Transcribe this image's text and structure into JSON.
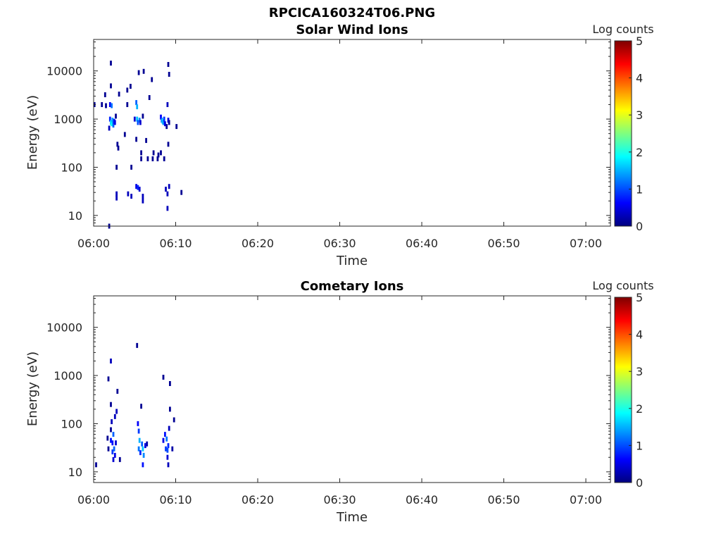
{
  "figure": {
    "title": "RPCICA160324T06.PNG"
  },
  "colormap": {
    "name": "jet",
    "stops": [
      "#00007f",
      "#0000ff",
      "#007fff",
      "#00ffff",
      "#7fff7f",
      "#ffff00",
      "#ff7f00",
      "#ff0000",
      "#7f0000"
    ]
  },
  "chart_data": [
    {
      "type": "heatmap",
      "title": "Solar Wind Ions",
      "xlabel": "Time",
      "ylabel": "Energy (eV)",
      "xlim": [
        "06:00",
        "07:03"
      ],
      "ylim": [
        6,
        45000
      ],
      "yscale": "log",
      "xticks": [
        "06:00",
        "06:10",
        "06:20",
        "06:30",
        "06:40",
        "06:50",
        "07:00"
      ],
      "yticks": [
        10,
        100,
        1000,
        10000
      ],
      "ytick_labels": [
        "10",
        "100",
        "1000",
        "10000"
      ],
      "colorbar": {
        "label": "Log counts",
        "range": [
          0,
          5
        ],
        "ticks": [
          "0",
          "1",
          "2",
          "3",
          "4",
          "5"
        ]
      },
      "points": [
        {
          "t": 0.1,
          "e": 2000,
          "c": 0.1
        },
        {
          "t": 1.0,
          "e": 2000,
          "c": 0.1
        },
        {
          "t": 1.4,
          "e": 3200,
          "c": 0.1
        },
        {
          "t": 1.5,
          "e": 1900,
          "c": 0.1
        },
        {
          "t": 2.1,
          "e": 14500,
          "c": 0.1
        },
        {
          "t": 2.1,
          "e": 4900,
          "c": 0.1
        },
        {
          "t": 2.0,
          "e": 2000,
          "c": 0.6
        },
        {
          "t": 2.2,
          "e": 1900,
          "c": 1.2
        },
        {
          "t": 2.0,
          "e": 1000,
          "c": 0.8
        },
        {
          "t": 2.1,
          "e": 850,
          "c": 1.6
        },
        {
          "t": 2.2,
          "e": 800,
          "c": 1.9
        },
        {
          "t": 2.3,
          "e": 950,
          "c": 1.4
        },
        {
          "t": 2.4,
          "e": 750,
          "c": 1.1
        },
        {
          "t": 2.5,
          "e": 900,
          "c": 0.7
        },
        {
          "t": 2.6,
          "e": 850,
          "c": 0.5
        },
        {
          "t": 1.9,
          "e": 650,
          "c": 0.3
        },
        {
          "t": 2.7,
          "e": 1150,
          "c": 0.1
        },
        {
          "t": 2.9,
          "e": 300,
          "c": 0.1
        },
        {
          "t": 3.0,
          "e": 250,
          "c": 0.1
        },
        {
          "t": 2.8,
          "e": 100,
          "c": 0.1
        },
        {
          "t": 2.8,
          "e": 28,
          "c": 0.3
        },
        {
          "t": 2.8,
          "e": 23,
          "c": 0.3
        },
        {
          "t": 1.9,
          "e": 6,
          "c": 0.1
        },
        {
          "t": 3.1,
          "e": 3300,
          "c": 0.1
        },
        {
          "t": 3.8,
          "e": 480,
          "c": 0.1
        },
        {
          "t": 4.1,
          "e": 2000,
          "c": 0.1
        },
        {
          "t": 4.1,
          "e": 4000,
          "c": 0.1
        },
        {
          "t": 4.5,
          "e": 4800,
          "c": 0.1
        },
        {
          "t": 4.6,
          "e": 100,
          "c": 0.1
        },
        {
          "t": 4.2,
          "e": 28,
          "c": 0.3
        },
        {
          "t": 4.6,
          "e": 25,
          "c": 0.3
        },
        {
          "t": 5.0,
          "e": 1000,
          "c": 0.4
        },
        {
          "t": 5.2,
          "e": 2200,
          "c": 1.1
        },
        {
          "t": 5.3,
          "e": 1800,
          "c": 1.5
        },
        {
          "t": 5.3,
          "e": 1000,
          "c": 1.6
        },
        {
          "t": 5.4,
          "e": 850,
          "c": 1.0
        },
        {
          "t": 5.6,
          "e": 950,
          "c": 1.3
        },
        {
          "t": 5.7,
          "e": 850,
          "c": 0.4
        },
        {
          "t": 5.5,
          "e": 9200,
          "c": 0.1
        },
        {
          "t": 5.2,
          "e": 380,
          "c": 0.1
        },
        {
          "t": 5.2,
          "e": 40,
          "c": 0.5
        },
        {
          "t": 5.4,
          "e": 38,
          "c": 0.8
        },
        {
          "t": 5.6,
          "e": 35,
          "c": 0.4
        },
        {
          "t": 6.0,
          "e": 25,
          "c": 0.3
        },
        {
          "t": 6.0,
          "e": 20,
          "c": 0.3
        },
        {
          "t": 5.8,
          "e": 150,
          "c": 0.1
        },
        {
          "t": 5.8,
          "e": 200,
          "c": 0.1
        },
        {
          "t": 6.0,
          "e": 1150,
          "c": 0.1
        },
        {
          "t": 6.1,
          "e": 9800,
          "c": 0.1
        },
        {
          "t": 6.4,
          "e": 360,
          "c": 0.1
        },
        {
          "t": 6.6,
          "e": 150,
          "c": 0.1
        },
        {
          "t": 6.8,
          "e": 2800,
          "c": 0.1
        },
        {
          "t": 7.1,
          "e": 6600,
          "c": 0.1
        },
        {
          "t": 7.2,
          "e": 150,
          "c": 0.1
        },
        {
          "t": 7.3,
          "e": 200,
          "c": 0.1
        },
        {
          "t": 8.2,
          "e": 1100,
          "c": 0.6
        },
        {
          "t": 8.3,
          "e": 950,
          "c": 1.1
        },
        {
          "t": 8.4,
          "e": 900,
          "c": 1.8
        },
        {
          "t": 8.5,
          "e": 850,
          "c": 1.3
        },
        {
          "t": 8.6,
          "e": 1000,
          "c": 0.9
        },
        {
          "t": 8.7,
          "e": 800,
          "c": 0.5
        },
        {
          "t": 7.8,
          "e": 150,
          "c": 0.1
        },
        {
          "t": 7.9,
          "e": 180,
          "c": 0.1
        },
        {
          "t": 8.2,
          "e": 200,
          "c": 0.1
        },
        {
          "t": 8.6,
          "e": 150,
          "c": 0.1
        },
        {
          "t": 8.9,
          "e": 700,
          "c": 0.1
        },
        {
          "t": 9.1,
          "e": 13600,
          "c": 0.1
        },
        {
          "t": 9.2,
          "e": 8500,
          "c": 0.1
        },
        {
          "t": 9.0,
          "e": 2000,
          "c": 0.3
        },
        {
          "t": 9.1,
          "e": 950,
          "c": 0.5
        },
        {
          "t": 9.2,
          "e": 850,
          "c": 0.1
        },
        {
          "t": 9.1,
          "e": 300,
          "c": 0.1
        },
        {
          "t": 8.8,
          "e": 35,
          "c": 0.3
        },
        {
          "t": 9.0,
          "e": 28,
          "c": 0.3
        },
        {
          "t": 9.2,
          "e": 40,
          "c": 0.3
        },
        {
          "t": 9.0,
          "e": 14,
          "c": 0.3
        },
        {
          "t": 10.1,
          "e": 700,
          "c": 0.1
        },
        {
          "t": 10.7,
          "e": 30,
          "c": 0.1
        }
      ]
    },
    {
      "type": "heatmap",
      "title": "Cometary Ions",
      "xlabel": "Time",
      "ylabel": "Energy (eV)",
      "xlim": [
        "06:00",
        "07:03"
      ],
      "ylim": [
        6,
        45000
      ],
      "yscale": "log",
      "xticks": [
        "06:00",
        "06:10",
        "06:20",
        "06:30",
        "06:40",
        "06:50",
        "07:00"
      ],
      "yticks": [
        10,
        100,
        1000,
        10000
      ],
      "ytick_labels": [
        "10",
        "100",
        "1000",
        "10000"
      ],
      "colorbar": {
        "label": "Log counts",
        "range": [
          0,
          5
        ],
        "ticks": [
          "0",
          "1",
          "2",
          "3",
          "4",
          "5"
        ]
      },
      "points": [
        {
          "t": 0.3,
          "e": 14,
          "c": 0.1
        },
        {
          "t": 1.7,
          "e": 50,
          "c": 0.1
        },
        {
          "t": 1.8,
          "e": 30,
          "c": 0.1
        },
        {
          "t": 1.8,
          "e": 850,
          "c": 0.1
        },
        {
          "t": 2.1,
          "e": 2000,
          "c": 0.3
        },
        {
          "t": 2.1,
          "e": 250,
          "c": 0.1
        },
        {
          "t": 2.2,
          "e": 110,
          "c": 0.3
        },
        {
          "t": 2.1,
          "e": 75,
          "c": 0.1
        },
        {
          "t": 2.1,
          "e": 45,
          "c": 0.7
        },
        {
          "t": 2.3,
          "e": 40,
          "c": 0.7
        },
        {
          "t": 2.4,
          "e": 60,
          "c": 1.1
        },
        {
          "t": 2.3,
          "e": 26,
          "c": 0.9
        },
        {
          "t": 2.5,
          "e": 30,
          "c": 1.1
        },
        {
          "t": 2.4,
          "e": 18,
          "c": 0.4
        },
        {
          "t": 2.6,
          "e": 22,
          "c": 0.5
        },
        {
          "t": 2.7,
          "e": 40,
          "c": 0.4
        },
        {
          "t": 2.6,
          "e": 140,
          "c": 0.3
        },
        {
          "t": 2.8,
          "e": 180,
          "c": 0.3
        },
        {
          "t": 2.9,
          "e": 470,
          "c": 0.1
        },
        {
          "t": 3.2,
          "e": 18,
          "c": 0.1
        },
        {
          "t": 5.3,
          "e": 4200,
          "c": 0.1
        },
        {
          "t": 5.4,
          "e": 100,
          "c": 0.6
        },
        {
          "t": 5.5,
          "e": 70,
          "c": 0.9
        },
        {
          "t": 5.6,
          "e": 45,
          "c": 1.5
        },
        {
          "t": 5.5,
          "e": 30,
          "c": 1.2
        },
        {
          "t": 5.7,
          "e": 25,
          "c": 0.8
        },
        {
          "t": 5.8,
          "e": 230,
          "c": 0.1
        },
        {
          "t": 5.9,
          "e": 38,
          "c": 1.1
        },
        {
          "t": 6.0,
          "e": 30,
          "c": 1.6
        },
        {
          "t": 6.1,
          "e": 22,
          "c": 1.3
        },
        {
          "t": 6.0,
          "e": 14,
          "c": 0.7
        },
        {
          "t": 6.3,
          "e": 35,
          "c": 0.5
        },
        {
          "t": 6.5,
          "e": 38,
          "c": 0.2
        },
        {
          "t": 8.5,
          "e": 920,
          "c": 0.1
        },
        {
          "t": 8.5,
          "e": 45,
          "c": 0.5
        },
        {
          "t": 8.7,
          "e": 60,
          "c": 0.7
        },
        {
          "t": 8.9,
          "e": 48,
          "c": 1.2
        },
        {
          "t": 8.8,
          "e": 30,
          "c": 0.9
        },
        {
          "t": 9.0,
          "e": 28,
          "c": 1.0
        },
        {
          "t": 9.1,
          "e": 35,
          "c": 0.8
        },
        {
          "t": 9.0,
          "e": 20,
          "c": 0.4
        },
        {
          "t": 9.1,
          "e": 14,
          "c": 0.3
        },
        {
          "t": 9.2,
          "e": 80,
          "c": 0.3
        },
        {
          "t": 9.3,
          "e": 200,
          "c": 0.1
        },
        {
          "t": 9.3,
          "e": 680,
          "c": 0.1
        },
        {
          "t": 9.6,
          "e": 30,
          "c": 0.2
        },
        {
          "t": 9.8,
          "e": 120,
          "c": 0.1
        }
      ]
    }
  ]
}
